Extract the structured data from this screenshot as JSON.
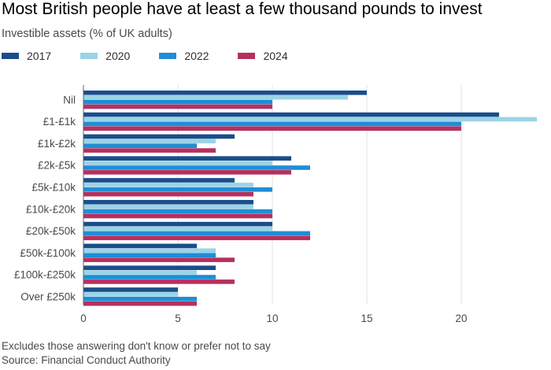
{
  "title": "Most British people have at least a few thousand pounds to invest",
  "subtitle": "Investible assets (% of UK adults)",
  "footnote": "Excludes those answering don't know or prefer not to say",
  "source": "Source: Financial Conduct Authority",
  "colors": {
    "2017": "#1a4d8c",
    "2020": "#9bd3e6",
    "2022": "#1f8dd6",
    "2024": "#b5305e",
    "grid": "#e3e0dd",
    "axis": "#66605c"
  },
  "chart_data": {
    "type": "bar",
    "orientation": "horizontal",
    "categories": [
      "Nil",
      "£1-£1k",
      "£1k-£2k",
      "£2k-£5k",
      "£5k-£10k",
      "£10k-£20k",
      "£20k-£50k",
      "£50k-£100k",
      "£100k-£250k",
      "Over £250k"
    ],
    "series": [
      {
        "name": "2017",
        "values": [
          15,
          22,
          8,
          11,
          8,
          9,
          10,
          6,
          7,
          5
        ]
      },
      {
        "name": "2020",
        "values": [
          14,
          24,
          7,
          10,
          9,
          9,
          10,
          7,
          6,
          5
        ]
      },
      {
        "name": "2022",
        "values": [
          10,
          20,
          6,
          12,
          10,
          10,
          12,
          7,
          7,
          6
        ]
      },
      {
        "name": "2024",
        "values": [
          10,
          20,
          7,
          11,
          9,
          10,
          12,
          8,
          8,
          6
        ]
      }
    ],
    "xticks": [
      "0",
      "5",
      "10",
      "15",
      "20"
    ],
    "xlim": [
      0,
      24
    ],
    "grid": true,
    "legend_position": "top-left"
  }
}
